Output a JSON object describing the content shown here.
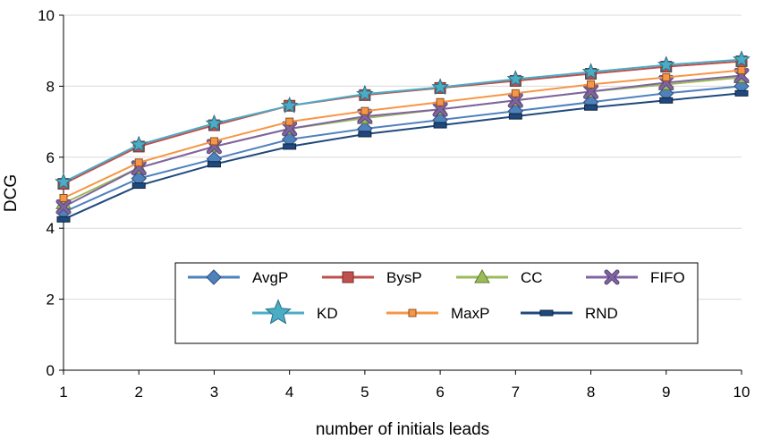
{
  "chart_data": {
    "type": "line",
    "xlabel": "number of initials leads",
    "ylabel": "DCG",
    "x": [
      1,
      2,
      3,
      4,
      5,
      6,
      7,
      8,
      9,
      10
    ],
    "xlim": [
      1,
      10
    ],
    "ylim": [
      0,
      10
    ],
    "yticks": [
      0,
      2,
      4,
      6,
      8,
      10
    ],
    "grid": "horizontal",
    "legend_position": "lower-right",
    "series": [
      {
        "name": "AvgP",
        "marker": "diamond",
        "color": "#4f81bd",
        "fill": "#4f81bd",
        "values": [
          4.45,
          5.4,
          5.95,
          6.5,
          6.8,
          7.05,
          7.3,
          7.55,
          7.8,
          8.0
        ]
      },
      {
        "name": "BysP",
        "marker": "square",
        "color": "#c0504d",
        "fill": "#c0504d",
        "values": [
          5.25,
          6.3,
          6.9,
          7.45,
          7.75,
          7.95,
          8.15,
          8.35,
          8.55,
          8.7
        ]
      },
      {
        "name": "CC",
        "marker": "triangle",
        "color": "#9bbb59",
        "fill": "#9bbb59",
        "values": [
          4.7,
          5.7,
          6.3,
          6.8,
          7.1,
          7.35,
          7.6,
          7.85,
          8.05,
          8.25
        ]
      },
      {
        "name": "FIFO",
        "marker": "x",
        "color": "#8064a2",
        "fill": "#8064a2",
        "values": [
          4.6,
          5.7,
          6.3,
          6.8,
          7.15,
          7.35,
          7.6,
          7.85,
          8.1,
          8.3
        ]
      },
      {
        "name": "KD",
        "marker": "star",
        "color": "#4bacc6",
        "fill": "#4bacc6",
        "values": [
          5.3,
          6.35,
          6.95,
          7.45,
          7.78,
          7.97,
          8.2,
          8.4,
          8.6,
          8.75
        ]
      },
      {
        "name": "MaxP",
        "marker": "small-square",
        "color": "#f79646",
        "fill": "#f79646",
        "values": [
          4.85,
          5.85,
          6.45,
          7.0,
          7.3,
          7.55,
          7.8,
          8.05,
          8.25,
          8.45
        ]
      },
      {
        "name": "RND",
        "marker": "bar",
        "color": "#1f497d",
        "fill": "#1f497d",
        "values": [
          4.25,
          5.2,
          5.8,
          6.3,
          6.65,
          6.9,
          7.15,
          7.4,
          7.6,
          7.8
        ]
      }
    ]
  }
}
